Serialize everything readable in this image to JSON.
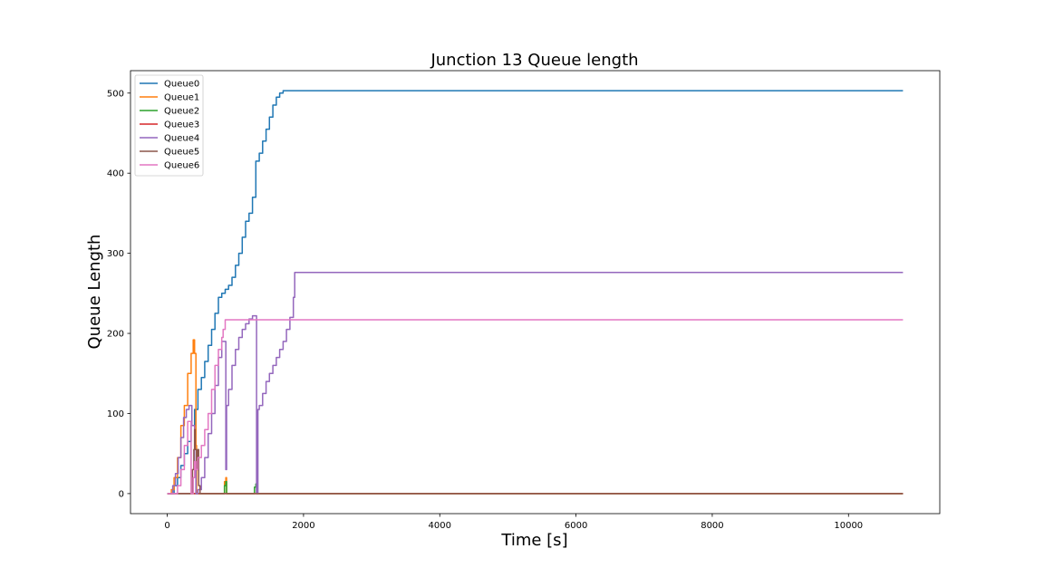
{
  "chart_data": {
    "type": "line",
    "title": "Junction 13 Queue length",
    "xlabel": "Time [s]",
    "ylabel": "Queue Length",
    "xlim": [
      -540,
      11340
    ],
    "ylim": [
      -25,
      528
    ],
    "xticks": [
      0,
      2000,
      4000,
      6000,
      8000,
      10000
    ],
    "yticks": [
      0,
      100,
      200,
      300,
      400,
      500
    ],
    "grid": false,
    "legend": "top-left",
    "series": [
      {
        "name": "Queue0",
        "color": "#1f77b4",
        "x": [
          0,
          100,
          150,
          200,
          250,
          300,
          350,
          400,
          450,
          500,
          550,
          600,
          650,
          700,
          750,
          800,
          850,
          900,
          950,
          1000,
          1050,
          1100,
          1150,
          1200,
          1250,
          1300,
          1350,
          1400,
          1450,
          1500,
          1550,
          1600,
          1650,
          1700,
          1750,
          1800,
          1850,
          10800
        ],
        "y": [
          0,
          10,
          20,
          35,
          50,
          65,
          85,
          105,
          130,
          145,
          165,
          185,
          205,
          225,
          245,
          250,
          255,
          260,
          270,
          285,
          300,
          320,
          340,
          350,
          370,
          415,
          425,
          440,
          455,
          470,
          485,
          495,
          500,
          503,
          503,
          503,
          503,
          503
        ]
      },
      {
        "name": "Queue1",
        "color": "#ff7f0e",
        "x": [
          0,
          60,
          100,
          150,
          200,
          250,
          300,
          350,
          380,
          400,
          420,
          430,
          440,
          460,
          500,
          800,
          840,
          860,
          870,
          900,
          10800
        ],
        "y": [
          0,
          5,
          20,
          45,
          85,
          110,
          150,
          175,
          192,
          175,
          60,
          0,
          0,
          0,
          0,
          0,
          15,
          20,
          0,
          0,
          0
        ]
      },
      {
        "name": "Queue2",
        "color": "#2ca02c",
        "x": [
          0,
          800,
          840,
          860,
          870,
          1250,
          1280,
          1300,
          1310,
          10800
        ],
        "y": [
          0,
          0,
          10,
          15,
          0,
          0,
          8,
          12,
          0,
          0
        ]
      },
      {
        "name": "Queue3",
        "color": "#d62728",
        "x": [
          0,
          10800
        ],
        "y": [
          0,
          0
        ]
      },
      {
        "name": "Queue4",
        "color": "#9467bd",
        "x": [
          0,
          80,
          120,
          160,
          200,
          240,
          280,
          320,
          360,
          400,
          420,
          450,
          500,
          550,
          600,
          650,
          700,
          750,
          800,
          840,
          860,
          870,
          900,
          950,
          1000,
          1050,
          1100,
          1150,
          1200,
          1250,
          1270,
          1300,
          1310,
          1330,
          1350,
          1400,
          1450,
          1500,
          1550,
          1600,
          1650,
          1700,
          1750,
          1800,
          1850,
          1870,
          10800
        ],
        "y": [
          0,
          10,
          25,
          45,
          70,
          95,
          105,
          110,
          85,
          40,
          0,
          5,
          20,
          45,
          75,
          100,
          135,
          170,
          190,
          190,
          30,
          110,
          130,
          160,
          180,
          195,
          205,
          212,
          218,
          222,
          222,
          222,
          0,
          105,
          110,
          125,
          140,
          150,
          160,
          170,
          180,
          190,
          205,
          220,
          245,
          276,
          276
        ]
      },
      {
        "name": "Queue5",
        "color": "#8c564b",
        "x": [
          0,
          350,
          370,
          390,
          400,
          410,
          430,
          450,
          460,
          480,
          10800
        ],
        "y": [
          0,
          0,
          30,
          55,
          80,
          55,
          30,
          55,
          10,
          0,
          0
        ]
      },
      {
        "name": "Queue6",
        "color": "#e377c2",
        "x": [
          0,
          150,
          200,
          250,
          300,
          350,
          380,
          400,
          420,
          450,
          500,
          550,
          600,
          650,
          700,
          750,
          800,
          820,
          850,
          900,
          1000,
          1100,
          1200,
          1300,
          10800
        ],
        "y": [
          0,
          10,
          30,
          60,
          90,
          0,
          20,
          40,
          30,
          45,
          60,
          80,
          100,
          130,
          160,
          180,
          195,
          205,
          217,
          217,
          217,
          217,
          217,
          217,
          217
        ]
      }
    ]
  }
}
